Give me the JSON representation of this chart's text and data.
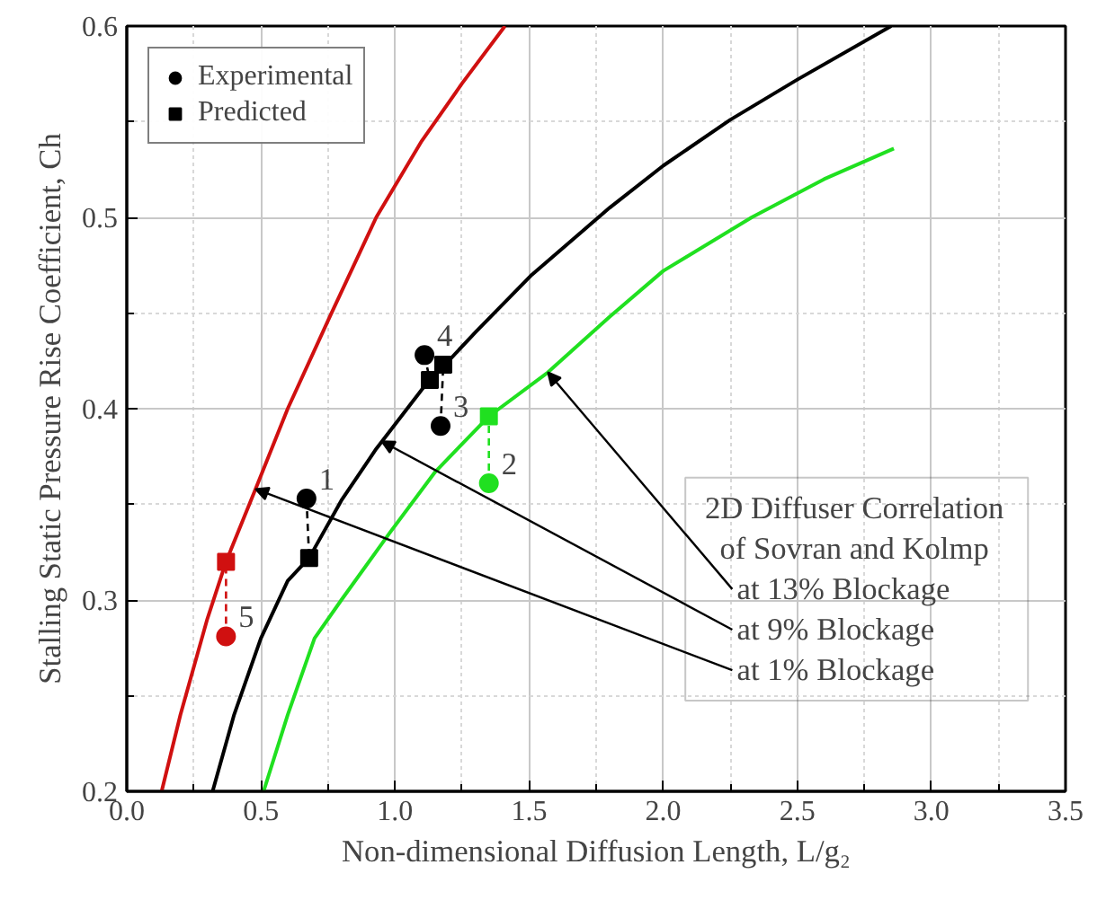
{
  "chart_data": {
    "type": "line",
    "xlabel": "Non-dimensional Diffusion Length, L/g₂",
    "ylabel": "Stalling Static Pressure Rise Coefficient, Ch",
    "xlim": [
      0,
      3.5
    ],
    "ylim": [
      0.2,
      0.6
    ],
    "xticks": [
      {
        "value": 0,
        "label": "0.0"
      },
      0.5,
      {
        "value": 1,
        "label": "1.0"
      },
      1.5,
      {
        "value": 2,
        "label": "2.0"
      },
      2.5,
      {
        "value": 3,
        "label": "3.0"
      },
      3.5
    ],
    "yticks": [
      0.2,
      0.3,
      0.4,
      0.5,
      0.6
    ],
    "grid": true,
    "legend": "top left",
    "line_style": "solid",
    "series": [
      {
        "color": "#d01010",
        "x": [
          0.13,
          0.2,
          0.3,
          0.37,
          0.48,
          0.6,
          0.76,
          0.93,
          1.1,
          1.25,
          1.41
        ],
        "values": [
          0.2,
          0.24,
          0.29,
          0.32,
          0.358,
          0.4,
          0.449,
          0.5,
          0.54,
          0.57,
          0.6
        ]
      },
      {
        "color": "#000000",
        "x": [
          0.32,
          0.4,
          0.5,
          0.6,
          0.68,
          0.8,
          0.93,
          1.1,
          1.3,
          1.51,
          1.8,
          2.0,
          2.25,
          2.5,
          2.85
        ],
        "values": [
          0.2,
          0.24,
          0.28,
          0.31,
          0.322,
          0.352,
          0.379,
          0.41,
          0.44,
          0.47,
          0.505,
          0.527,
          0.551,
          0.572,
          0.6
        ]
      },
      {
        "color": "#20e020",
        "x": [
          0.51,
          0.6,
          0.7,
          0.8,
          0.98,
          1.15,
          1.35,
          1.57,
          1.8,
          2.0,
          2.33,
          2.6,
          2.86
        ],
        "values": [
          0.2,
          0.24,
          0.28,
          0.3,
          0.335,
          0.367,
          0.396,
          0.419,
          0.448,
          0.472,
          0.5,
          0.52,
          0.536
        ]
      },
      {
        "type": "line",
        "line_style": "dashed",
        "color": "#000000",
        "x": [
          0.67,
          0.68
        ],
        "values": [
          0.353,
          0.322
        ]
      },
      {
        "type": "line",
        "line_style": "dashed",
        "color": "#20e020",
        "x": [
          1.35,
          1.35
        ],
        "values": [
          0.361,
          0.396
        ]
      },
      {
        "type": "line",
        "line_style": "dashed",
        "color": "#000000",
        "x": [
          1.17,
          1.18
        ],
        "values": [
          0.391,
          0.423
        ]
      },
      {
        "type": "line",
        "line_style": "dashed",
        "color": "#000000",
        "x": [
          1.11,
          1.13
        ],
        "values": [
          0.428,
          0.415
        ]
      },
      {
        "type": "line",
        "line_style": "dashed",
        "color": "#d01010",
        "x": [
          0.37,
          0.37
        ],
        "values": [
          0.281,
          0.32
        ]
      },
      {
        "type": "scatter",
        "marker": "circle",
        "name": "Experimental",
        "color": "#000000",
        "colors": [
          "#000000",
          "#20e020",
          "#000000",
          "#000000",
          "#d01010"
        ],
        "x": [
          0.67,
          1.35,
          1.17,
          1.11,
          0.37
        ],
        "values": [
          0.353,
          0.361,
          0.391,
          0.428,
          0.281
        ]
      },
      {
        "type": "scatter",
        "marker": "square",
        "name": "Predicted",
        "color": "#000000",
        "colors": [
          "#000000",
          "#20e020",
          "#000000",
          "#000000",
          "#d01010"
        ],
        "x": [
          0.68,
          1.35,
          1.18,
          1.13,
          0.37
        ],
        "values": [
          0.322,
          0.396,
          0.423,
          0.415,
          0.32
        ]
      }
    ],
    "annotations": [
      {
        "text": "1",
        "x": 0.67,
        "y": 0.353
      },
      {
        "text": "2",
        "x": 1.35,
        "y": 0.361
      },
      {
        "text": "3",
        "x": 1.17,
        "y": 0.391
      },
      {
        "text": "4",
        "x": 1.11,
        "y": 0.428
      },
      {
        "text": "5",
        "x": 0.37,
        "y": 0.281
      },
      "2D Diffuser Correlation",
      "of Sovran and Kolmp",
      {
        "text": "at 13% Blockage",
        "x": 1.57,
        "y": 0.419
      },
      {
        "text": "at 9% Blockage",
        "x": 0.95,
        "y": 0.383
      },
      {
        "text": "at 1% Blockage",
        "x": 0.48,
        "y": 0.358
      }
    ]
  }
}
